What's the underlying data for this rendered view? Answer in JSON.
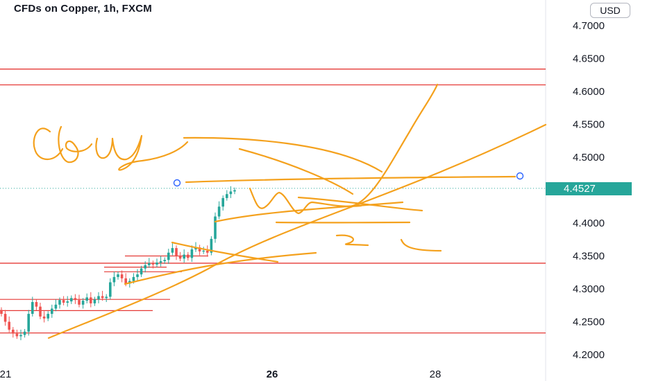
{
  "header": {
    "title": "CFDs on Copper, 1h, FXCM",
    "currency": "USD"
  },
  "colors": {
    "up": "#26a69a",
    "down": "#ef5350",
    "hline": "#e53935",
    "drawing": "#f4a11d",
    "axis_text": "#131722",
    "anchor": "#2962ff"
  },
  "annotation_text": "Buy",
  "chart_data": {
    "type": "candlestick",
    "title": "CFDs on Copper, 1h, FXCM",
    "y_axis": {
      "ticks": [
        "4.7000",
        "4.6500",
        "4.6000",
        "4.5500",
        "4.5000",
        "4.4000",
        "4.3500",
        "4.3000",
        "4.2500",
        "4.2000"
      ],
      "range": [
        4.19,
        4.74
      ]
    },
    "x_axis": {
      "ticks": [
        "21",
        "26",
        "28"
      ]
    },
    "last_price": "4.4527",
    "horizontal_levels": [
      4.634,
      4.61,
      4.339,
      4.233
    ],
    "candles_close": [
      4.262,
      4.25,
      4.238,
      4.232,
      4.228,
      4.23,
      4.235,
      4.262,
      4.28,
      4.273,
      4.258,
      4.255,
      4.262,
      4.27,
      4.276,
      4.283,
      4.279,
      4.281,
      4.286,
      4.283,
      4.276,
      4.282,
      4.287,
      4.278,
      4.284,
      4.289,
      4.286,
      4.288,
      4.31,
      4.318,
      4.322,
      4.316,
      4.308,
      4.312,
      4.318,
      4.322,
      4.331,
      4.336,
      4.339,
      4.337,
      4.34,
      4.342,
      4.344,
      4.355,
      4.362,
      4.35,
      4.346,
      4.352,
      4.347,
      4.36,
      4.363,
      4.357,
      4.358,
      4.355,
      4.376,
      4.41,
      4.425,
      4.438,
      4.444,
      4.448,
      4.45
    ]
  }
}
